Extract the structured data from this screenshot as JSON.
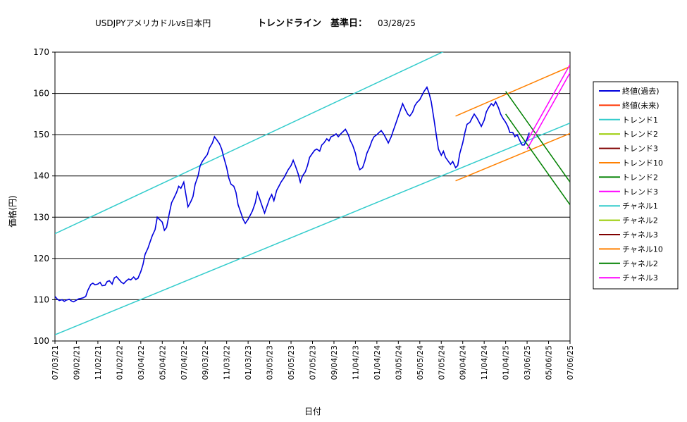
{
  "chart_data": {
    "type": "line",
    "title": {
      "part1": "USDJPYアメリカドルvs日本円",
      "part2": "トレンドライン　基準日：",
      "date": "03/28/25"
    },
    "xlabel": "日付",
    "ylabel": "価格(円)",
    "ylim": [
      100,
      170
    ],
    "yticks": [
      "100",
      "110",
      "120",
      "130",
      "140",
      "150",
      "160",
      "170"
    ],
    "xticks": [
      "07/03/21",
      "09/02/21",
      "11/02/21",
      "01/02/22",
      "03/04/22",
      "05/04/22",
      "07/04/22",
      "09/03/22",
      "11/03/22",
      "01/03/23",
      "03/05/23",
      "05/05/23",
      "07/05/23",
      "09/04/23",
      "11/04/23",
      "01/04/24",
      "03/05/24",
      "05/05/24",
      "07/05/24",
      "09/04/24",
      "11/04/24",
      "01/04/25",
      "03/06/25",
      "05/06/25",
      "07/06/25"
    ],
    "grid": "horizontal",
    "legend_position": "right",
    "colors": {
      "closing_past": "#0000dd",
      "closing_future": "#ff3300",
      "trend1": "#33cccc",
      "trend2_light": "#99cc00",
      "trend3_dark": "#800000",
      "trend10": "#ff8000",
      "trend2_green": "#008000",
      "trend3_magenta": "#ff00ff"
    },
    "legend": [
      {
        "label": "終値(過去)",
        "color": "#0000dd"
      },
      {
        "label": "終値(未来)",
        "color": "#ff3300"
      },
      {
        "label": "トレンド1",
        "color": "#33cccc"
      },
      {
        "label": "トレンド2",
        "color": "#99cc00"
      },
      {
        "label": "トレンド3",
        "color": "#800000"
      },
      {
        "label": "トレンド10",
        "color": "#ff8000"
      },
      {
        "label": "トレンド2",
        "color": "#008000"
      },
      {
        "label": "トレンド3",
        "color": "#ff00ff"
      },
      {
        "label": "チャネル1",
        "color": "#33cccc"
      },
      {
        "label": "チャネル2",
        "color": "#99cc00"
      },
      {
        "label": "チャネル3",
        "color": "#800000"
      },
      {
        "label": "チャネル10",
        "color": "#ff8000"
      },
      {
        "label": "チャネル2",
        "color": "#008000"
      },
      {
        "label": "チャネル3",
        "color": "#ff00ff"
      }
    ],
    "price_series": {
      "name": "終値(過去)",
      "points": [
        [
          0,
          110.8
        ],
        [
          0.3,
          110.2
        ],
        [
          0.6,
          109.8
        ],
        [
          1,
          110.0
        ],
        [
          1.3,
          109.6
        ],
        [
          1.6,
          109.9
        ],
        [
          2,
          110.1
        ],
        [
          2.3,
          109.7
        ],
        [
          2.6,
          109.5
        ],
        [
          3,
          109.9
        ],
        [
          3.3,
          110.2
        ],
        [
          3.6,
          110.3
        ],
        [
          4,
          110.5
        ],
        [
          4.3,
          110.8
        ],
        [
          4.6,
          112.3
        ],
        [
          5,
          113.7
        ],
        [
          5.3,
          114.0
        ],
        [
          5.6,
          113.6
        ],
        [
          6,
          113.8
        ],
        [
          6.3,
          114.2
        ],
        [
          6.6,
          113.4
        ],
        [
          7,
          113.5
        ],
        [
          7.3,
          114.4
        ],
        [
          7.6,
          114.6
        ],
        [
          8,
          113.8
        ],
        [
          8.3,
          115.3
        ],
        [
          8.6,
          115.6
        ],
        [
          9,
          114.8
        ],
        [
          9.3,
          114.2
        ],
        [
          9.6,
          113.9
        ],
        [
          10,
          114.6
        ],
        [
          10.3,
          115.0
        ],
        [
          10.6,
          114.8
        ],
        [
          11,
          115.5
        ],
        [
          11.3,
          114.9
        ],
        [
          11.6,
          115.2
        ],
        [
          12,
          116.8
        ],
        [
          12.3,
          118.5
        ],
        [
          12.6,
          121.0
        ],
        [
          13,
          122.5
        ],
        [
          13.3,
          124.0
        ],
        [
          13.6,
          125.5
        ],
        [
          14,
          127.0
        ],
        [
          14.3,
          130.0
        ],
        [
          14.6,
          129.5
        ],
        [
          15,
          128.8
        ],
        [
          15.3,
          126.8
        ],
        [
          15.6,
          127.5
        ],
        [
          16,
          131.0
        ],
        [
          16.3,
          133.5
        ],
        [
          16.6,
          134.5
        ],
        [
          17,
          136.0
        ],
        [
          17.3,
          137.5
        ],
        [
          17.6,
          137.0
        ],
        [
          18,
          138.5
        ],
        [
          18.3,
          135.5
        ],
        [
          18.6,
          132.5
        ],
        [
          19,
          133.8
        ],
        [
          19.3,
          135.0
        ],
        [
          19.6,
          138.0
        ],
        [
          20,
          140.0
        ],
        [
          20.3,
          142.5
        ],
        [
          20.6,
          143.5
        ],
        [
          21,
          144.5
        ],
        [
          21.3,
          145.2
        ],
        [
          21.6,
          146.8
        ],
        [
          22,
          148.0
        ],
        [
          22.3,
          149.5
        ],
        [
          22.6,
          148.8
        ],
        [
          23,
          147.8
        ],
        [
          23.3,
          146.5
        ],
        [
          23.6,
          144.5
        ],
        [
          24,
          142.0
        ],
        [
          24.3,
          139.5
        ],
        [
          24.6,
          138.0
        ],
        [
          25,
          137.5
        ],
        [
          25.3,
          136.0
        ],
        [
          25.6,
          133.0
        ],
        [
          26,
          131.0
        ],
        [
          26.3,
          129.5
        ],
        [
          26.6,
          128.5
        ],
        [
          27,
          129.5
        ],
        [
          27.3,
          130.5
        ],
        [
          27.6,
          131.5
        ],
        [
          28,
          133.5
        ],
        [
          28.3,
          136.0
        ],
        [
          28.6,
          134.5
        ],
        [
          29,
          132.5
        ],
        [
          29.3,
          131.0
        ],
        [
          29.6,
          132.5
        ],
        [
          30,
          134.5
        ],
        [
          30.3,
          135.5
        ],
        [
          30.6,
          134.0
        ],
        [
          31,
          136.5
        ],
        [
          31.3,
          137.5
        ],
        [
          31.6,
          138.5
        ],
        [
          32,
          139.5
        ],
        [
          32.3,
          140.5
        ],
        [
          32.6,
          141.5
        ],
        [
          33,
          142.5
        ],
        [
          33.3,
          143.8
        ],
        [
          33.6,
          142.5
        ],
        [
          34,
          140.5
        ],
        [
          34.3,
          138.5
        ],
        [
          34.6,
          140.0
        ],
        [
          35,
          141.0
        ],
        [
          35.3,
          142.5
        ],
        [
          35.6,
          144.5
        ],
        [
          36,
          145.5
        ],
        [
          36.3,
          146.2
        ],
        [
          36.6,
          146.5
        ],
        [
          37,
          146.0
        ],
        [
          37.3,
          147.5
        ],
        [
          37.6,
          148.0
        ],
        [
          38,
          149.0
        ],
        [
          38.3,
          148.5
        ],
        [
          38.6,
          149.5
        ],
        [
          39,
          149.8
        ],
        [
          39.3,
          150.2
        ],
        [
          39.6,
          149.5
        ],
        [
          40,
          150.3
        ],
        [
          40.3,
          150.8
        ],
        [
          40.6,
          151.3
        ],
        [
          41,
          150.0
        ],
        [
          41.3,
          148.5
        ],
        [
          41.6,
          147.5
        ],
        [
          42,
          145.5
        ],
        [
          42.3,
          143.0
        ],
        [
          42.6,
          141.5
        ],
        [
          43,
          142.0
        ],
        [
          43.3,
          143.5
        ],
        [
          43.6,
          145.5
        ],
        [
          44,
          147.0
        ],
        [
          44.3,
          148.5
        ],
        [
          44.6,
          149.5
        ],
        [
          45,
          150.0
        ],
        [
          45.3,
          150.5
        ],
        [
          45.6,
          151.0
        ],
        [
          46,
          150.0
        ],
        [
          46.3,
          149.0
        ],
        [
          46.6,
          148.0
        ],
        [
          47,
          149.5
        ],
        [
          47.3,
          151.0
        ],
        [
          47.6,
          152.5
        ],
        [
          48,
          154.5
        ],
        [
          48.3,
          156.0
        ],
        [
          48.6,
          157.5
        ],
        [
          49,
          156.0
        ],
        [
          49.3,
          155.0
        ],
        [
          49.6,
          154.5
        ],
        [
          50,
          155.5
        ],
        [
          50.3,
          157.0
        ],
        [
          50.6,
          157.8
        ],
        [
          51,
          158.5
        ],
        [
          51.3,
          159.5
        ],
        [
          51.6,
          160.5
        ],
        [
          52,
          161.5
        ],
        [
          52.3,
          160.0
        ],
        [
          52.6,
          158.0
        ],
        [
          53,
          153.5
        ],
        [
          53.3,
          150.0
        ],
        [
          53.6,
          146.5
        ],
        [
          54,
          145.0
        ],
        [
          54.3,
          146.0
        ],
        [
          54.6,
          144.5
        ],
        [
          55,
          143.5
        ],
        [
          55.3,
          142.8
        ],
        [
          55.6,
          143.5
        ],
        [
          56,
          142.0
        ],
        [
          56.3,
          142.5
        ],
        [
          56.6,
          145.5
        ],
        [
          57,
          148.0
        ],
        [
          57.3,
          150.5
        ],
        [
          57.6,
          152.5
        ],
        [
          58,
          153.0
        ],
        [
          58.3,
          154.0
        ],
        [
          58.6,
          155.0
        ],
        [
          59,
          154.0
        ],
        [
          59.3,
          153.0
        ],
        [
          59.6,
          152.0
        ],
        [
          60,
          153.5
        ],
        [
          60.3,
          155.5
        ],
        [
          60.6,
          156.5
        ],
        [
          61,
          157.5
        ],
        [
          61.3,
          157.0
        ],
        [
          61.6,
          158.0
        ],
        [
          62,
          156.5
        ],
        [
          62.3,
          155.0
        ],
        [
          62.6,
          154.0
        ],
        [
          63,
          153.0
        ],
        [
          63.3,
          152.0
        ],
        [
          63.6,
          150.5
        ],
        [
          64,
          150.5
        ],
        [
          64.3,
          149.5
        ],
        [
          64.6,
          150.0
        ],
        [
          65,
          148.5
        ],
        [
          65.3,
          147.5
        ],
        [
          65.6,
          147.5
        ],
        [
          66,
          149.0
        ],
        [
          66.3,
          150.5
        ]
      ]
    },
    "trend_lines": [
      {
        "name": "トレンド1",
        "color": "#33cccc",
        "x": [
          0,
          72
        ],
        "y": [
          126.0,
          184.5
        ]
      },
      {
        "name": "チャネル1",
        "color": "#33cccc",
        "x": [
          0,
          72
        ],
        "y": [
          101.5,
          152.8
        ]
      },
      {
        "name": "トレンド10",
        "color": "#ff8000",
        "x": [
          56,
          72
        ],
        "y": [
          154.5,
          166.5
        ]
      },
      {
        "name": "チャネル10",
        "color": "#ff8000",
        "x": [
          56,
          72
        ],
        "y": [
          138.8,
          150.3
        ]
      },
      {
        "name": "トレンド2",
        "color": "#008000",
        "x": [
          63,
          72
        ],
        "y": [
          160.5,
          138.5
        ]
      },
      {
        "name": "チャネル2",
        "color": "#008000",
        "x": [
          63,
          72
        ],
        "y": [
          155.0,
          133.0
        ]
      },
      {
        "name": "トレンド3",
        "color": "#ff00ff",
        "x": [
          66,
          72
        ],
        "y": [
          148.5,
          167.0
        ]
      },
      {
        "name": "チャネル3",
        "color": "#ff00ff",
        "x": [
          66,
          72
        ],
        "y": [
          146.5,
          165.0
        ]
      }
    ],
    "xlim": [
      0,
      72
    ]
  }
}
